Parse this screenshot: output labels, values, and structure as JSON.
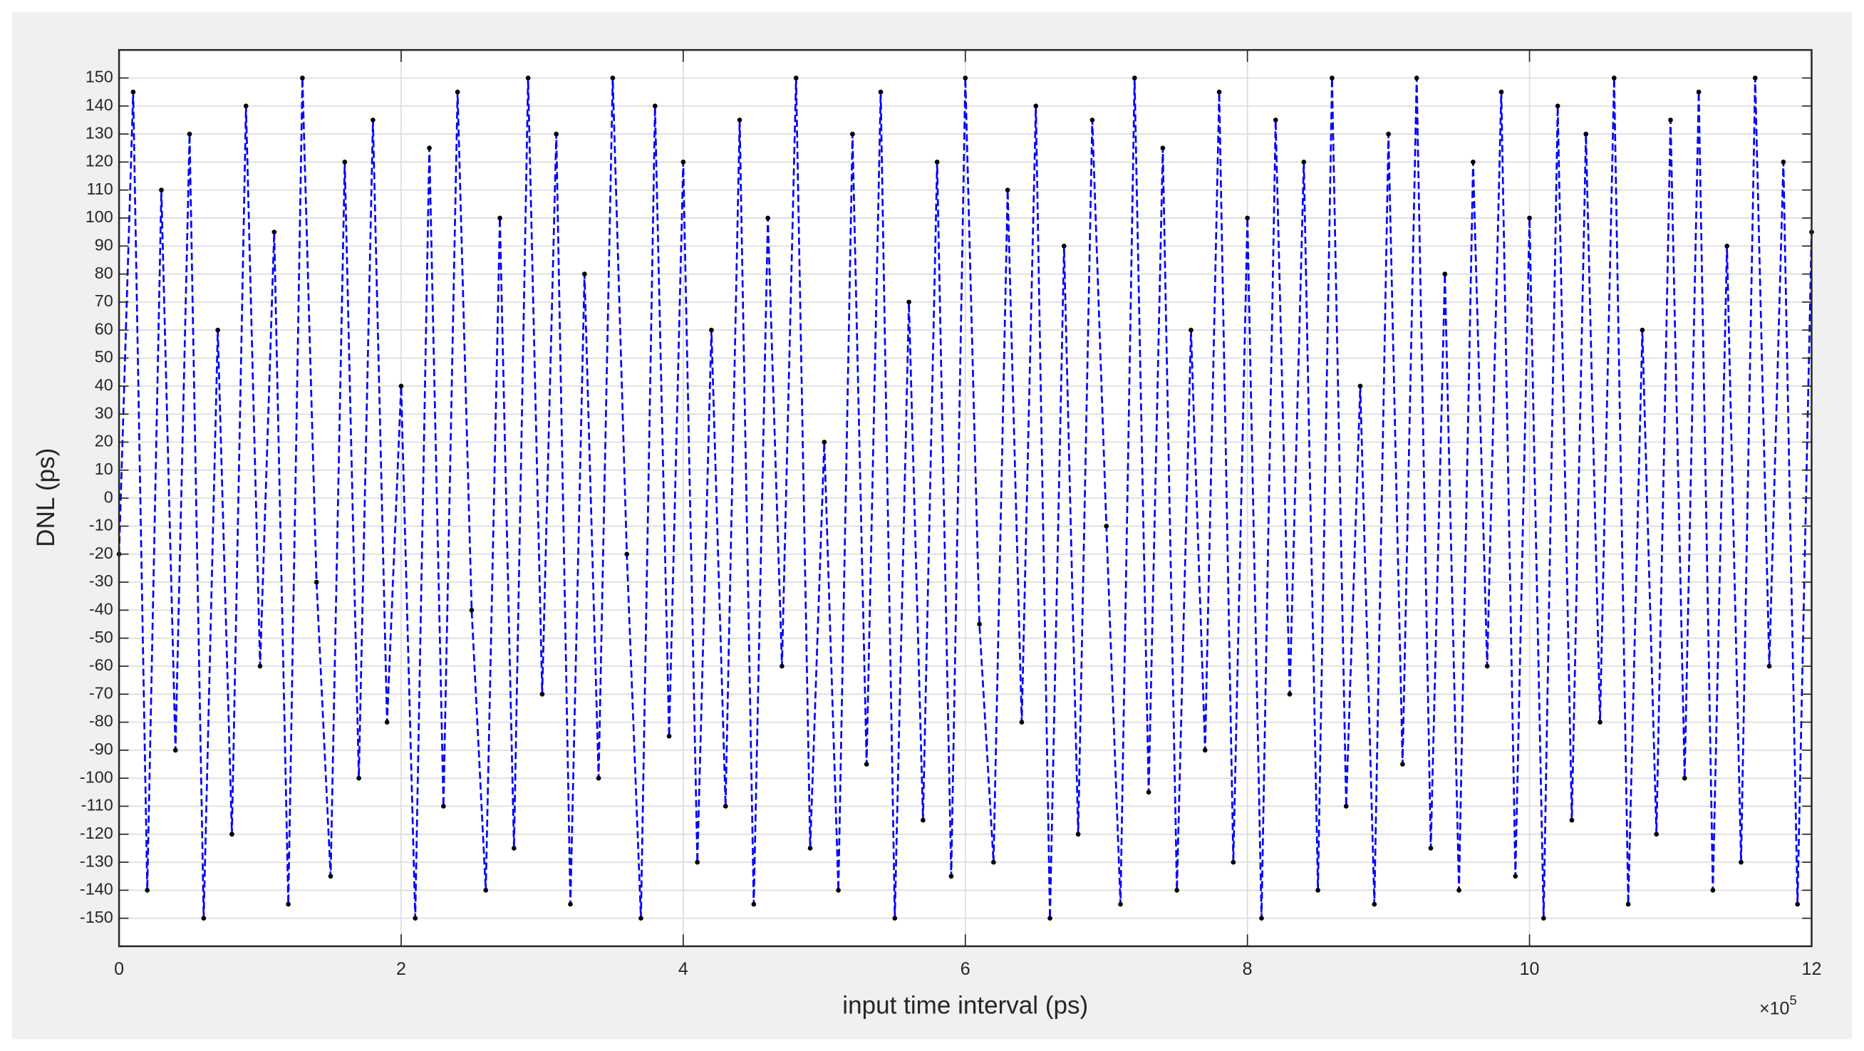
{
  "chart_data": {
    "type": "line",
    "xlabel": "input time interval (ps)",
    "ylabel": "DNL (ps)",
    "x_multiplier": {
      "base": "×10",
      "exponent": "5"
    },
    "xlim": [
      0,
      12
    ],
    "xticks": [
      0,
      2,
      4,
      6,
      8,
      10,
      12
    ],
    "ylim": [
      -160,
      160
    ],
    "yticks": [
      -150,
      -140,
      -130,
      -120,
      -110,
      -100,
      -90,
      -80,
      -70,
      -60,
      -50,
      -40,
      -30,
      -20,
      -10,
      0,
      10,
      20,
      30,
      40,
      50,
      60,
      70,
      80,
      90,
      100,
      110,
      120,
      130,
      140,
      150
    ],
    "grid": true,
    "line_style": "dashed",
    "marker_color": "#000000",
    "x": [
      0,
      0.1,
      0.2,
      0.3,
      0.4,
      0.5,
      0.6,
      0.7,
      0.8,
      0.9,
      1,
      1.1,
      1.2,
      1.3,
      1.4,
      1.5,
      1.6,
      1.7,
      1.8,
      1.9,
      2,
      2.1,
      2.2,
      2.3,
      2.4,
      2.5,
      2.6,
      2.7,
      2.8,
      2.9,
      3,
      3.1,
      3.2,
      3.3,
      3.4,
      3.5,
      3.6,
      3.7,
      3.8,
      3.9,
      4,
      4.1,
      4.2,
      4.3,
      4.4,
      4.5,
      4.6,
      4.7,
      4.8,
      4.9,
      5,
      5.1,
      5.2,
      5.3,
      5.4,
      5.5,
      5.6,
      5.7,
      5.8,
      5.9,
      6,
      6.1,
      6.2,
      6.3,
      6.4,
      6.5,
      6.6,
      6.7,
      6.8,
      6.9,
      7,
      7.1,
      7.2,
      7.3,
      7.4,
      7.5,
      7.6,
      7.7,
      7.8,
      7.9,
      8,
      8.1,
      8.2,
      8.3,
      8.4,
      8.5,
      8.6,
      8.7,
      8.8,
      8.9,
      9,
      9.1,
      9.2,
      9.3,
      9.4,
      9.5,
      9.6,
      9.7,
      9.8,
      9.9,
      10,
      10.1,
      10.2,
      10.3,
      10.4,
      10.5,
      10.6,
      10.7,
      10.8,
      10.9,
      11,
      11.1,
      11.2,
      11.3,
      11.4,
      11.5,
      11.6,
      11.7,
      11.8,
      11.9,
      12
    ],
    "series": [
      {
        "color": "#0000ff",
        "values": [
          -20,
          145,
          -140,
          110,
          -90,
          130,
          -150,
          60,
          -120,
          140,
          -60,
          95,
          -145,
          150,
          -30,
          -135,
          120,
          -100,
          135,
          -80,
          40,
          -150,
          125,
          -110,
          145,
          -40,
          -140,
          100,
          -125,
          150,
          -70,
          130,
          -145,
          80,
          -100,
          150,
          -20,
          -150,
          140,
          -85,
          120,
          -130,
          60,
          -110,
          135,
          -145,
          100,
          -60,
          150,
          -125,
          20,
          -140,
          130,
          -95,
          145,
          -150,
          70,
          -115,
          120,
          -135,
          150,
          -45,
          -130,
          110,
          -80,
          140,
          -150,
          90,
          -120,
          135,
          -10,
          -145,
          150,
          -105,
          125,
          -140,
          60,
          -90,
          145,
          -130,
          100,
          -150,
          135,
          -70,
          120,
          -140,
          150,
          -110,
          40,
          -145,
          130,
          -95,
          150,
          -125,
          80,
          -140,
          120,
          -60,
          145,
          -135,
          100,
          -150,
          140,
          -115,
          130,
          -80,
          150,
          -145,
          60,
          -120,
          135,
          -100,
          145,
          -140,
          90,
          -130,
          150,
          -60,
          120,
          -145,
          95
        ]
      }
    ]
  }
}
